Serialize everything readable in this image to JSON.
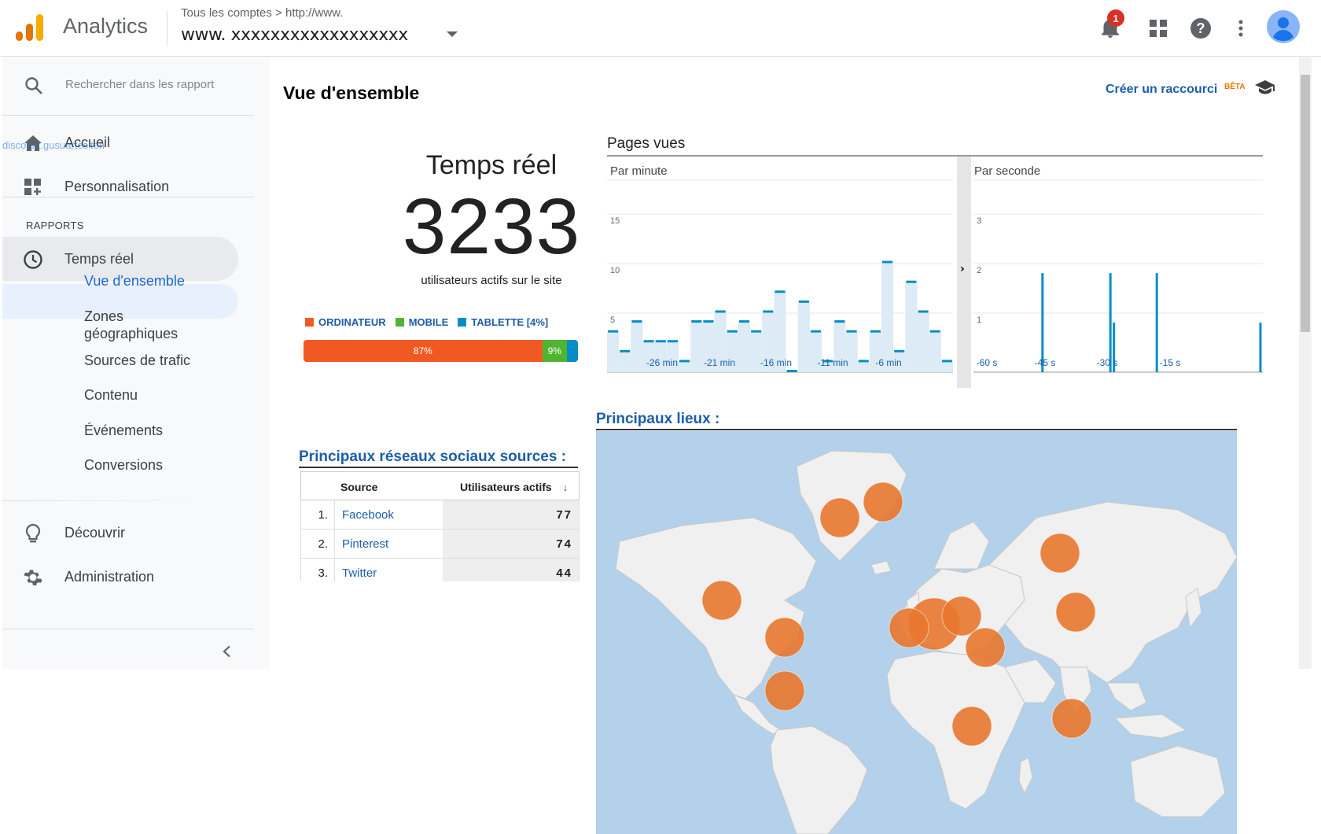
{
  "header": {
    "app_title": "Analytics",
    "breadcrumb": "Tous les comptes  >  http://www.",
    "account_name": "www. xxxxxxxxxxxxxxxxxx",
    "notifications_count": "1",
    "icons": [
      "notifications-icon",
      "apps-grid-icon",
      "help-icon",
      "more-vert-icon",
      "account-avatar-icon"
    ],
    "logo_colors": [
      "#f9ab00",
      "#e37400",
      "#e37400"
    ]
  },
  "sidebar": {
    "search_placeholder": "Rechercher dans les rapport",
    "tooltip_url": "discount.gusuartesiten",
    "home_label": "Accueil",
    "customization_label": "Personnalisation",
    "reports_title": "RAPPORTS",
    "realtime_label": "Temps réel",
    "subitems": [
      "Vue d'ensemble",
      "Zones géographiques",
      "Sources de trafic",
      "Contenu",
      "Événements",
      "Conversions"
    ],
    "discover_label": "Découvrir",
    "admin_label": "Administration"
  },
  "main": {
    "page_title": "Vue d'ensemble",
    "shortcut_label": "Créer un raccourci",
    "beta_label": "BÊTA",
    "realtime": {
      "title": "Temps réel",
      "active_users": "3233",
      "subtitle": "utilisateurs actifs sur le site"
    },
    "devices": {
      "legend": [
        "ORDINATEUR",
        "MOBILE",
        "TABLETTE [4%]"
      ],
      "colors": [
        "#f05a22",
        "#50b432",
        "#058dc7"
      ],
      "shares": [
        87,
        9,
        4
      ],
      "labels": [
        "87%",
        "9%",
        ""
      ]
    },
    "social": {
      "title": "Principaux réseaux sociaux sources :",
      "col_source": "Source",
      "col_users": "Utilisateurs actifs",
      "rows": [
        {
          "rank": "1.",
          "name": "Facebook",
          "value": "77"
        },
        {
          "rank": "2.",
          "name": "Pinterest",
          "value": "74"
        },
        {
          "rank": "3.",
          "name": "Twitter",
          "value": "44"
        }
      ]
    },
    "pageviews_title": "Pages vues",
    "map_title": "Principaux lieux :"
  },
  "chart_data": [
    {
      "type": "bar",
      "title": "Par minute",
      "x_ticks": [
        "-26 min",
        "-21 min",
        "-16 min",
        "-11 min",
        "-6 min"
      ],
      "y_ticks": [
        "5",
        "10",
        "15"
      ],
      "ylim": [
        0,
        17
      ],
      "color": "#058dc7",
      "values": [
        4,
        2,
        5,
        3,
        3,
        3,
        1,
        5,
        5,
        6,
        4,
        5,
        4,
        6,
        8,
        0,
        7,
        4,
        1,
        5,
        4,
        1,
        4,
        11,
        2,
        9,
        6,
        4,
        1
      ]
    },
    {
      "type": "bar",
      "title": "Par seconde",
      "x_ticks": [
        "-60 s",
        "-45 s",
        "-30 s",
        "-15 s"
      ],
      "y_ticks": [
        "1",
        "2",
        "3"
      ],
      "ylim": [
        0,
        3.4
      ],
      "color": "#058dc7",
      "values": [
        0,
        0,
        0,
        0,
        0,
        0,
        0,
        0,
        0,
        0,
        0,
        0,
        0,
        0,
        0,
        0,
        0,
        0,
        0,
        2,
        0,
        0,
        0,
        0,
        0,
        0,
        0,
        0,
        0,
        0,
        0,
        0,
        0,
        0,
        0,
        0,
        0,
        0,
        2,
        1,
        0,
        0,
        0,
        0,
        0,
        0,
        0,
        0,
        0,
        0,
        0,
        2,
        0,
        0,
        0,
        0,
        0,
        0,
        0,
        0,
        0,
        0,
        0,
        0,
        0,
        0,
        0,
        0,
        0,
        0,
        0,
        0,
        0,
        0,
        0,
        0,
        0,
        0,
        0,
        0,
        1
      ]
    }
  ],
  "map": {
    "bubble_color": "#e8772e",
    "locations": [
      "North America West",
      "North America East",
      "Central America",
      "Greenland West",
      "Greenland East",
      "Western Europe",
      "Central Europe",
      "Eastern Europe",
      "Middle East",
      "Siberia",
      "East Asia",
      "East Africa",
      "Southeast Asia"
    ]
  }
}
